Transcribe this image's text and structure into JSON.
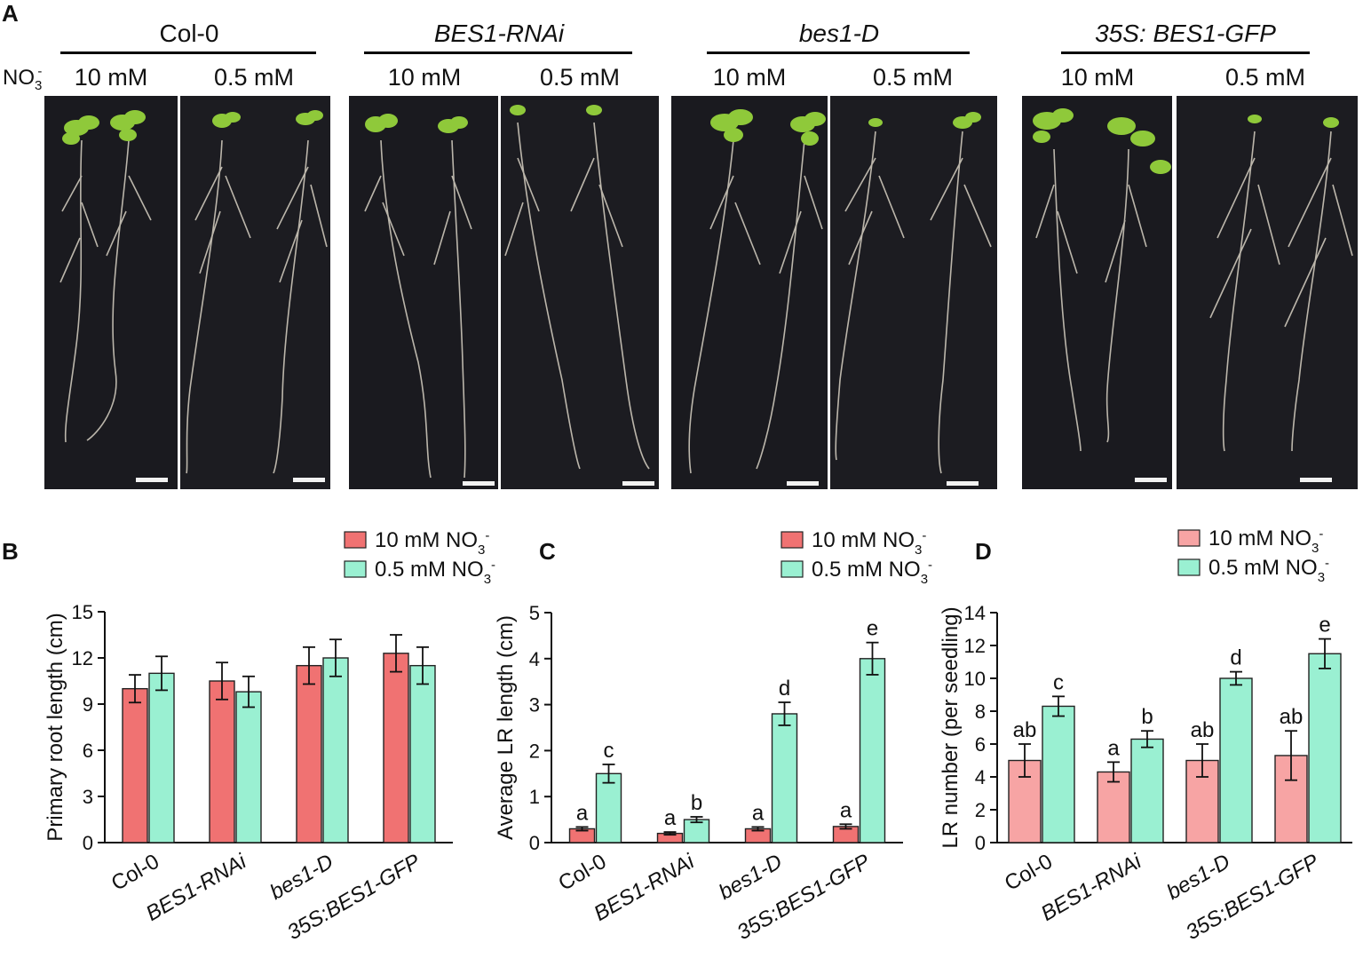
{
  "panel_a": {
    "label": "A",
    "nitrate_label": "NO3-",
    "groups": [
      {
        "name": "Col-0",
        "italic": false,
        "conc": [
          "10 mM",
          "0.5 mM"
        ]
      },
      {
        "name": "BES1-RNAi",
        "italic": true,
        "conc": [
          "10 mM",
          "0.5 mM"
        ]
      },
      {
        "name": "bes1-D",
        "italic": true,
        "conc": [
          "10 mM",
          "0.5 mM"
        ]
      },
      {
        "name": "35S: BES1-GFP",
        "italic": true,
        "conc": [
          "10 mM",
          "0.5 mM"
        ]
      }
    ],
    "colors": {
      "background": "#1a1a1f",
      "shoot": "#8fc93a",
      "root": "#d8d2c4",
      "scale_bar": "#f2f2f2"
    }
  },
  "legend": {
    "high": "10 mM NO3-",
    "low": "0.5 mM NO3-"
  },
  "chart_data": [
    {
      "panel": "B",
      "type": "bar",
      "categories": [
        "Col-0",
        "BES1-RNAi",
        "bes1-D",
        "35S:BES1-GFP"
      ],
      "ylabel": "Primary root length (cm)",
      "ylim": [
        0,
        15
      ],
      "yticks": [
        0,
        3,
        6,
        9,
        12,
        15
      ],
      "series": [
        {
          "name": "10 mM NO3-",
          "color": "#f07272",
          "values": [
            10.0,
            10.5,
            11.5,
            12.3
          ],
          "errors": [
            0.9,
            1.2,
            1.2,
            1.2
          ]
        },
        {
          "name": "0.5 mM NO3-",
          "color": "#9af0d2",
          "values": [
            11.0,
            9.8,
            12.0,
            11.5
          ],
          "errors": [
            1.1,
            1.0,
            1.2,
            1.2
          ]
        }
      ],
      "letters": null
    },
    {
      "panel": "C",
      "type": "bar",
      "categories": [
        "Col-0",
        "BES1-RNAi",
        "bes1-D",
        "35S:BES1-GFP"
      ],
      "ylabel": "Average LR length (cm)",
      "ylim": [
        0,
        5
      ],
      "yticks": [
        0,
        1,
        2,
        3,
        4,
        5
      ],
      "series": [
        {
          "name": "10 mM NO3-",
          "color": "#f07272",
          "values": [
            0.3,
            0.2,
            0.3,
            0.35
          ],
          "errors": [
            0.04,
            0.03,
            0.04,
            0.05
          ]
        },
        {
          "name": "0.5 mM NO3-",
          "color": "#9af0d2",
          "values": [
            1.5,
            0.5,
            2.8,
            4.0
          ],
          "errors": [
            0.2,
            0.06,
            0.25,
            0.35
          ]
        }
      ],
      "letters": [
        [
          "a",
          "a",
          "a",
          "a"
        ],
        [
          "c",
          "b",
          "d",
          "e"
        ]
      ]
    },
    {
      "panel": "D",
      "type": "bar",
      "categories": [
        "Col-0",
        "BES1-RNAi",
        "bes1-D",
        "35S:BES1-GFP"
      ],
      "ylabel": "LR number (per seedling)",
      "ylim": [
        0,
        14
      ],
      "yticks": [
        0,
        2,
        4,
        6,
        8,
        10,
        12,
        14
      ],
      "series": [
        {
          "name": "10 mM NO3-",
          "color": "#f7a4a4",
          "values": [
            5.0,
            4.3,
            5.0,
            5.3
          ],
          "errors": [
            1.0,
            0.6,
            1.0,
            1.5
          ]
        },
        {
          "name": "0.5 mM NO3-",
          "color": "#9af0d2",
          "values": [
            8.3,
            6.3,
            10.0,
            11.5
          ],
          "errors": [
            0.6,
            0.5,
            0.4,
            0.9
          ]
        }
      ],
      "letters": [
        [
          "ab",
          "a",
          "ab",
          "ab"
        ],
        [
          "c",
          "b",
          "d",
          "e"
        ]
      ]
    }
  ]
}
